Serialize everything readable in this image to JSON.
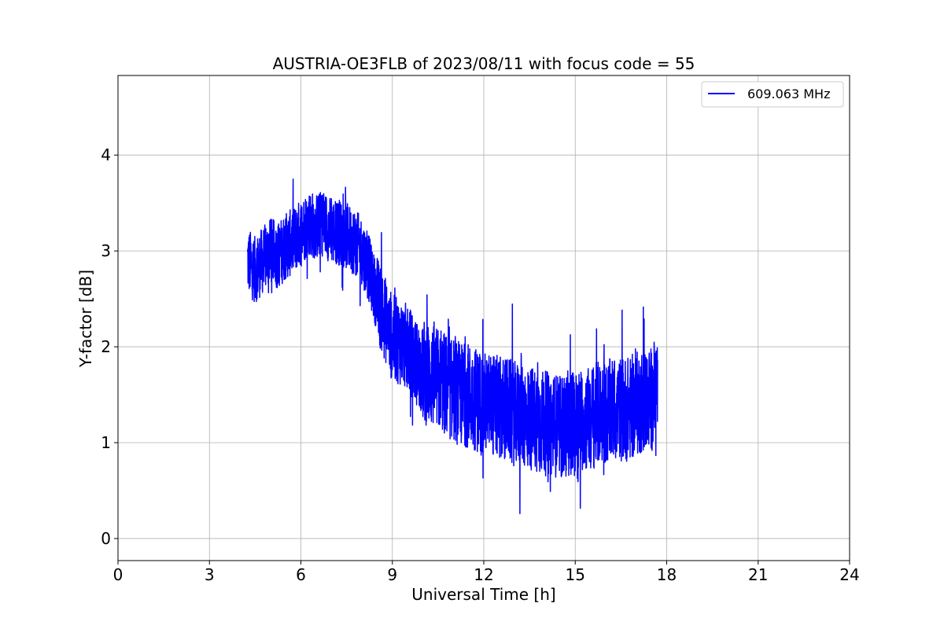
{
  "chart_data": {
    "type": "line",
    "title": "AUSTRIA-OE3FLB of 2023/08/11 with focus code = 55",
    "xlabel": "Universal Time [h]",
    "ylabel": "Y-factor [dB]",
    "xlim": [
      0,
      24
    ],
    "ylim": [
      -0.23,
      4.83
    ],
    "xticks": [
      "0",
      "3",
      "6",
      "9",
      "12",
      "15",
      "18",
      "21",
      "24"
    ],
    "yticks": [
      "0",
      "1",
      "2",
      "3",
      "4"
    ],
    "grid": true,
    "legend_position": "top-right",
    "series": [
      {
        "name": "609.063 MHz",
        "color": "#0000ff",
        "x": [
          4.25,
          4.5,
          4.75,
          5.0,
          5.25,
          5.5,
          5.75,
          6.0,
          6.25,
          6.5,
          6.75,
          7.0,
          7.25,
          7.5,
          7.75,
          8.0,
          8.25,
          8.5,
          8.75,
          9.0,
          9.25,
          9.5,
          9.75,
          10.0,
          10.25,
          10.5,
          10.75,
          11.0,
          11.25,
          11.5,
          11.75,
          12.0,
          12.25,
          12.5,
          12.75,
          13.0,
          13.25,
          13.5,
          13.75,
          14.0,
          14.25,
          14.5,
          14.75,
          15.0,
          15.25,
          15.5,
          15.75,
          16.0,
          16.25,
          16.5,
          16.75,
          17.0,
          17.25,
          17.5,
          17.7
        ],
        "y": [
          2.9,
          2.8,
          2.9,
          3.0,
          2.95,
          3.05,
          3.1,
          3.2,
          3.3,
          3.25,
          3.3,
          3.2,
          3.2,
          3.15,
          3.1,
          3.0,
          2.8,
          2.5,
          2.3,
          2.1,
          2.05,
          2.0,
          1.85,
          1.75,
          1.7,
          1.65,
          1.6,
          1.55,
          1.5,
          1.5,
          1.45,
          1.4,
          1.4,
          1.35,
          1.35,
          1.3,
          1.3,
          1.25,
          1.25,
          1.2,
          1.2,
          1.15,
          1.2,
          1.2,
          1.25,
          1.25,
          1.3,
          1.3,
          1.35,
          1.35,
          1.35,
          1.4,
          1.45,
          1.45,
          1.6
        ]
      }
    ]
  }
}
